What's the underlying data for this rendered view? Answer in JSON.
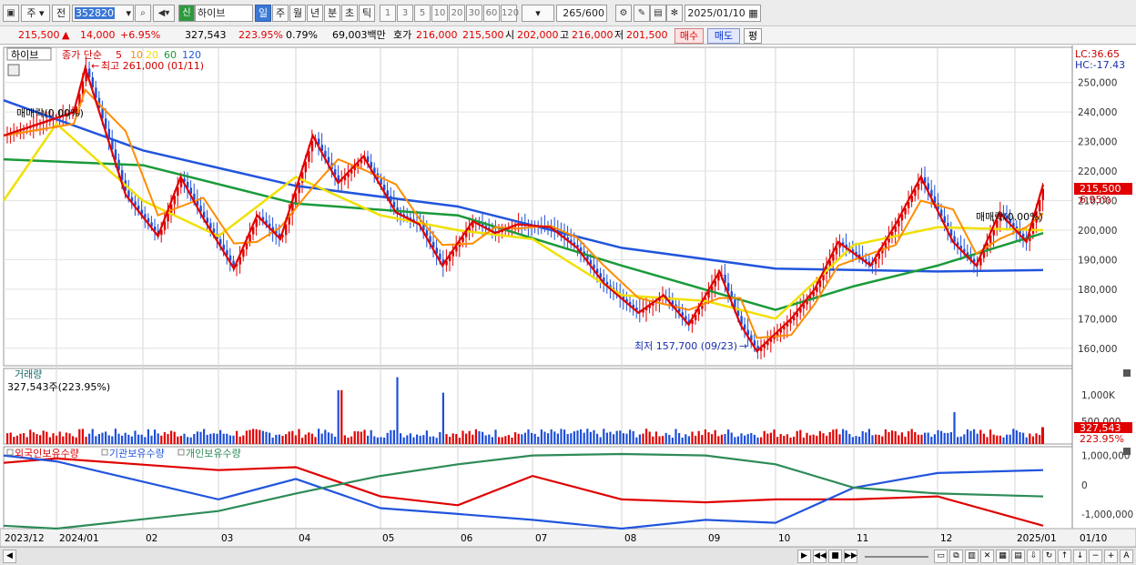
{
  "toolbar": {
    "period_unit": "주",
    "prev_label": "전",
    "stock_code": "352820",
    "badge_label": "신",
    "stock_name": "하이브",
    "period_tabs": [
      "일",
      "주",
      "월",
      "년",
      "분",
      "초",
      "틱"
    ],
    "active_period": "일",
    "interval_tabs": [
      "1",
      "3",
      "5",
      "10",
      "20",
      "30",
      "60",
      "120"
    ],
    "count_value": "265",
    "count_total": "/600",
    "date_value": "2025/01/10"
  },
  "info": {
    "price": "215,500",
    "change_arrow": "▲",
    "change": "14,000",
    "change_rate": "+6.95%",
    "volume": "327,543",
    "volume_rate": "223.95%",
    "turnover": "0.79%",
    "amount": "69,003백만",
    "quote_label": "호가",
    "ask": "216,000",
    "bid": "215,500",
    "open_label": "시",
    "open": "202,000",
    "high_label": "고",
    "high": "216,000",
    "low_label": "저",
    "low": "201,500",
    "buy_label": "매수",
    "sell_label": "매도",
    "avg_label": "평"
  },
  "price_panel": {
    "title": "하이브",
    "ma_label": "종가 단순",
    "ma_periods": [
      "5",
      "10",
      "20",
      "60",
      "120"
    ],
    "ma_colors": [
      "#e00000",
      "#ff8c00",
      "#f0e000",
      "#1a9a3a",
      "#2255dd"
    ],
    "high_annotation": "최고 261,000 (01/11)",
    "low_annotation": "최저 157,700 (09/23)",
    "lock_left": "매매락(0.00%)",
    "lock_right": "매매락(0.00%)",
    "lc": "LC:36.65",
    "hc": "HC:-17.43",
    "last_price_tag": "215,500",
    "last_rate_tag": "6.95%",
    "y_ticks": [
      "250,000",
      "240,000",
      "230,000",
      "220,000",
      "210,000",
      "200,000",
      "190,000",
      "180,000",
      "170,000",
      "160,000"
    ]
  },
  "volume_panel": {
    "title": "거래량",
    "current": "327,543주(223.95%)",
    "y_ticks": [
      "1,000K",
      "500,000"
    ],
    "tag_value": "327,543",
    "tag_rate": "223.95%"
  },
  "holding_panel": {
    "series": [
      {
        "name": "외국인보유수량",
        "color": "#e00000"
      },
      {
        "name": "기관보유수량",
        "color": "#2255dd"
      },
      {
        "name": "개인보유수량",
        "color": "#2e8b57"
      }
    ],
    "y_ticks": [
      "1,000,000",
      "0",
      "-1,000,000"
    ]
  },
  "x_labels": [
    "2023/12",
    "2024/01",
    "02",
    "03",
    "04",
    "05",
    "06",
    "07",
    "08",
    "09",
    "10",
    "11",
    "12",
    "2025/01",
    "01/10"
  ],
  "chart_data": {
    "type": "line",
    "y_axis": {
      "min": 155000,
      "max": 261000
    },
    "x_range": [
      "2023/12",
      "2025/01/10"
    ],
    "annotations": [
      {
        "text": "최고 261,000 (01/11)",
        "value": 261000
      },
      {
        "text": "최저 157,700 (09/23)",
        "value": 157700
      }
    ],
    "close_points": [
      {
        "x": "2023/12",
        "y": 232000
      },
      {
        "x": "2024/01 early",
        "y": 240000
      },
      {
        "x": "2024/01/11",
        "y": 255000
      },
      {
        "x": "2024/01 late",
        "y": 212000
      },
      {
        "x": "2024/02 early",
        "y": 198000
      },
      {
        "x": "2024/02 mid",
        "y": 218000
      },
      {
        "x": "2024/02 late",
        "y": 204000
      },
      {
        "x": "2024/03 early",
        "y": 187000
      },
      {
        "x": "2024/03 mid",
        "y": 205000
      },
      {
        "x": "2024/03 late",
        "y": 197000
      },
      {
        "x": "2024/04 early",
        "y": 232000
      },
      {
        "x": "2024/04 mid",
        "y": 216000
      },
      {
        "x": "2024/04 late",
        "y": 225000
      },
      {
        "x": "2024/05 early",
        "y": 206000
      },
      {
        "x": "2024/05 mid",
        "y": 202000
      },
      {
        "x": "2024/05 late",
        "y": 188000
      },
      {
        "x": "2024/06 early",
        "y": 203000
      },
      {
        "x": "2024/06 mid",
        "y": 199000
      },
      {
        "x": "2024/06 late",
        "y": 202000
      },
      {
        "x": "2024/07 early",
        "y": 201000
      },
      {
        "x": "2024/07 mid",
        "y": 194000
      },
      {
        "x": "2024/07 late",
        "y": 182000
      },
      {
        "x": "2024/08 early",
        "y": 172000
      },
      {
        "x": "2024/08 mid",
        "y": 178000
      },
      {
        "x": "2024/08 late",
        "y": 168000
      },
      {
        "x": "2024/09 early",
        "y": 186000
      },
      {
        "x": "2024/09 mid",
        "y": 168000
      },
      {
        "x": "2024/09/23",
        "y": 159000
      },
      {
        "x": "2024/10 early",
        "y": 170000
      },
      {
        "x": "2024/10 mid",
        "y": 180000
      },
      {
        "x": "2024/10 late",
        "y": 196000
      },
      {
        "x": "2024/11 early",
        "y": 188000
      },
      {
        "x": "2024/11 mid",
        "y": 202000
      },
      {
        "x": "2024/11 late",
        "y": 218000
      },
      {
        "x": "2024/12 early",
        "y": 196000
      },
      {
        "x": "2024/12 mid",
        "y": 188000
      },
      {
        "x": "2024/12 late",
        "y": 206000
      },
      {
        "x": "2025/01 early",
        "y": 196000
      },
      {
        "x": "2025/01/10",
        "y": 215500
      }
    ],
    "ma120_points": [
      {
        "x": "2023/12",
        "y": 244000
      },
      {
        "x": "2024/02",
        "y": 227000
      },
      {
        "x": "2024/04",
        "y": 215000
      },
      {
        "x": "2024/06",
        "y": 208000
      },
      {
        "x": "2024/08",
        "y": 194000
      },
      {
        "x": "2024/10",
        "y": 187000
      },
      {
        "x": "2024/12",
        "y": 186000
      },
      {
        "x": "2025/01/10",
        "y": 186500
      }
    ],
    "ma60_points": [
      {
        "x": "2023/12",
        "y": 224000
      },
      {
        "x": "2024/02",
        "y": 222000
      },
      {
        "x": "2024/04",
        "y": 209000
      },
      {
        "x": "2024/06",
        "y": 205000
      },
      {
        "x": "2024/08",
        "y": 188000
      },
      {
        "x": "2024/10",
        "y": 173000
      },
      {
        "x": "2024/11",
        "y": 181000
      },
      {
        "x": "2024/12",
        "y": 188000
      },
      {
        "x": "2025/01/10",
        "y": 199000
      }
    ],
    "ma20_points": [
      {
        "x": "2023/12",
        "y": 210000
      },
      {
        "x": "2024/01",
        "y": 236000
      },
      {
        "x": "2024/02",
        "y": 210000
      },
      {
        "x": "2024/03",
        "y": 198000
      },
      {
        "x": "2024/04",
        "y": 218000
      },
      {
        "x": "2024/05",
        "y": 205000
      },
      {
        "x": "2024/06",
        "y": 200000
      },
      {
        "x": "2024/07",
        "y": 197000
      },
      {
        "x": "2024/08",
        "y": 178000
      },
      {
        "x": "2024/09",
        "y": 176000
      },
      {
        "x": "2024/10",
        "y": 170000
      },
      {
        "x": "2024/11",
        "y": 195000
      },
      {
        "x": "2024/12",
        "y": 201000
      },
      {
        "x": "2025/01/10",
        "y": 200000
      }
    ],
    "volume_max": 1400000,
    "volume_spikes": [
      {
        "x": "2024/04 mid",
        "value": 1050000
      },
      {
        "x": "2024/05 early",
        "value": 1300000
      },
      {
        "x": "2024/05 late",
        "value": 1000000
      },
      {
        "x": "2024/12 early",
        "value": 620000
      },
      {
        "x": "2025/01/10",
        "value": 327543
      }
    ],
    "holding_y_range": [
      -1500000,
      1300000
    ],
    "holding_series": [
      {
        "name": "외국인보유수량",
        "points": [
          {
            "x": "2023/12",
            "y": 750000
          },
          {
            "x": "2024/01",
            "y": 900000
          },
          {
            "x": "2024/03",
            "y": 500000
          },
          {
            "x": "2024/04",
            "y": 600000
          },
          {
            "x": "2024/05",
            "y": -400000
          },
          {
            "x": "2024/06",
            "y": -700000
          },
          {
            "x": "2024/07",
            "y": 300000
          },
          {
            "x": "2024/08",
            "y": -500000
          },
          {
            "x": "2024/09",
            "y": -600000
          },
          {
            "x": "2024/10",
            "y": -500000
          },
          {
            "x": "2024/11",
            "y": -500000
          },
          {
            "x": "2024/12",
            "y": -400000
          },
          {
            "x": "2025/01/10",
            "y": -1400000
          }
        ]
      },
      {
        "name": "기관보유수량",
        "points": [
          {
            "x": "2023/12",
            "y": 1000000
          },
          {
            "x": "2024/01",
            "y": 800000
          },
          {
            "x": "2024/03",
            "y": -500000
          },
          {
            "x": "2024/04",
            "y": 200000
          },
          {
            "x": "2024/05",
            "y": -800000
          },
          {
            "x": "2024/06",
            "y": -1000000
          },
          {
            "x": "2024/07",
            "y": -1200000
          },
          {
            "x": "2024/08",
            "y": -1500000
          },
          {
            "x": "2024/09",
            "y": -1200000
          },
          {
            "x": "2024/10",
            "y": -1300000
          },
          {
            "x": "2024/11",
            "y": -100000
          },
          {
            "x": "2024/12",
            "y": 400000
          },
          {
            "x": "2025/01/10",
            "y": 500000
          }
        ]
      },
      {
        "name": "개인보유수량",
        "points": [
          {
            "x": "2023/12",
            "y": -1400000
          },
          {
            "x": "2024/01",
            "y": -1500000
          },
          {
            "x": "2024/03",
            "y": -900000
          },
          {
            "x": "2024/04",
            "y": -300000
          },
          {
            "x": "2024/05",
            "y": 300000
          },
          {
            "x": "2024/06",
            "y": 700000
          },
          {
            "x": "2024/07",
            "y": 1000000
          },
          {
            "x": "2024/08",
            "y": 1050000
          },
          {
            "x": "2024/09",
            "y": 1000000
          },
          {
            "x": "2024/10",
            "y": 700000
          },
          {
            "x": "2024/11",
            "y": -100000
          },
          {
            "x": "2024/12",
            "y": -300000
          },
          {
            "x": "2025/01/10",
            "y": -400000
          }
        ]
      }
    ]
  }
}
